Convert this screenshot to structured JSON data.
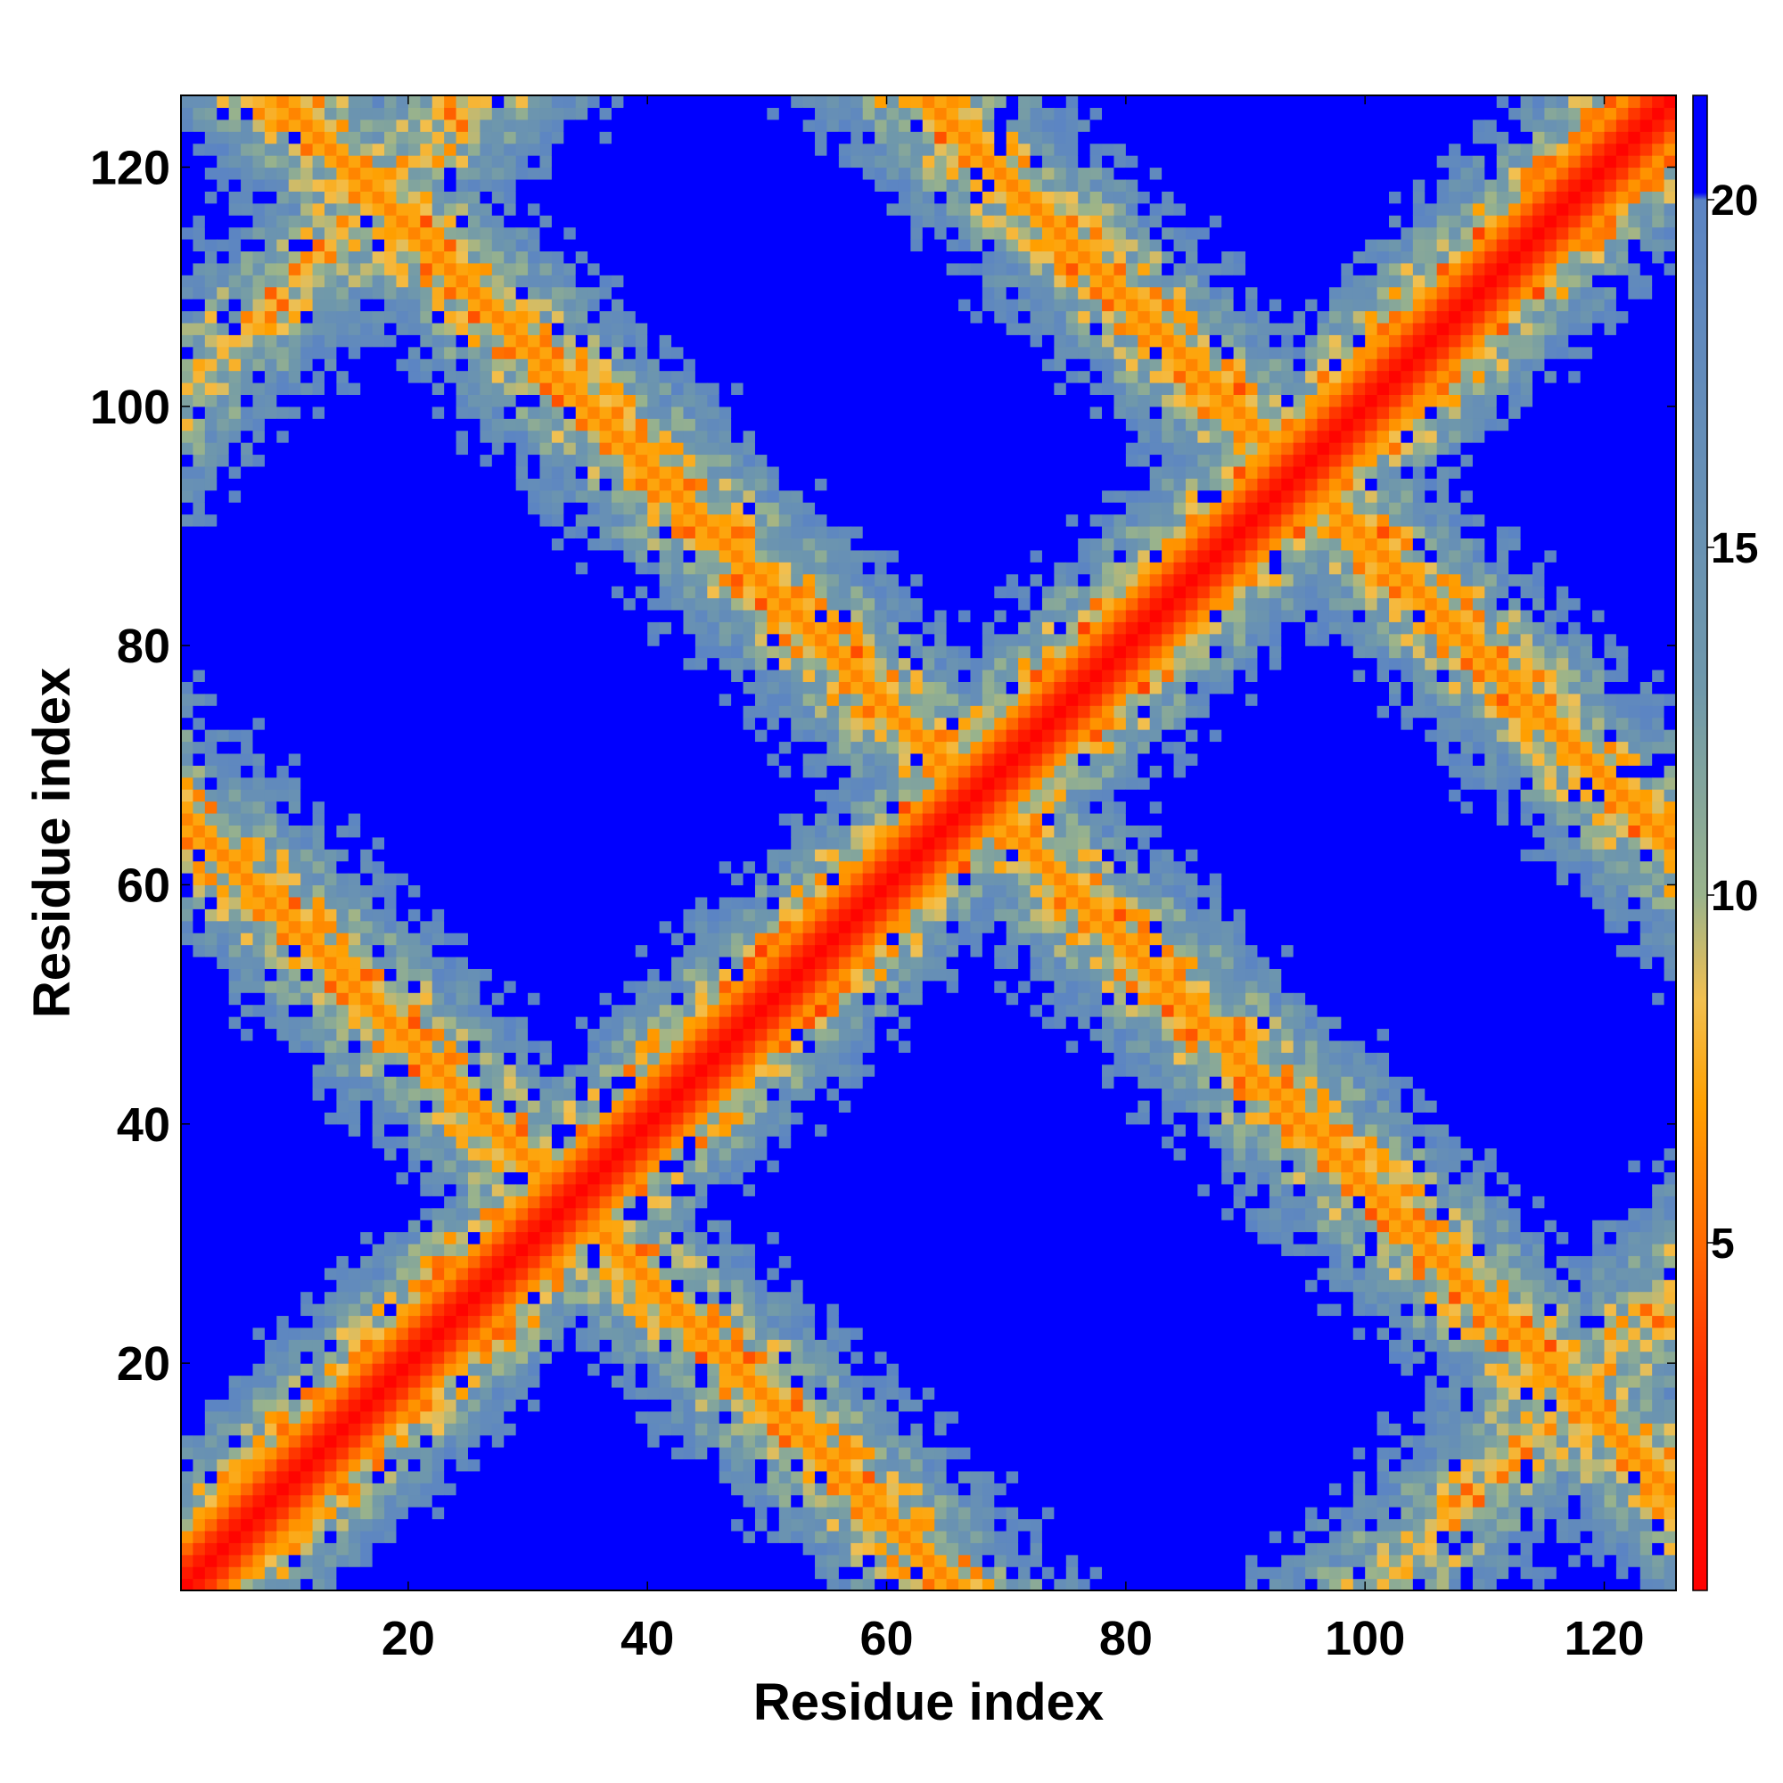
{
  "chart_data": {
    "type": "heatmap",
    "title": "",
    "xlabel": "Residue index",
    "ylabel": "Residue index",
    "n_residues": 125,
    "xlim": [
      1,
      126
    ],
    "ylim": [
      1,
      126
    ],
    "xticks": [
      20,
      40,
      60,
      80,
      100,
      120
    ],
    "yticks": [
      20,
      40,
      60,
      80,
      100,
      120
    ],
    "colorbar": {
      "range": [
        0,
        21.5
      ],
      "ticks": [
        5,
        10,
        15,
        20
      ],
      "saturation_color": "#0000ff",
      "color_stops": [
        {
          "value": 0,
          "color": "#ff0000"
        },
        {
          "value": 3,
          "color": "#ff2a00"
        },
        {
          "value": 5,
          "color": "#ff6a00"
        },
        {
          "value": 7,
          "color": "#ffa000"
        },
        {
          "value": 8.5,
          "color": "#f2c050"
        },
        {
          "value": 10,
          "color": "#99b38c"
        },
        {
          "value": 13,
          "color": "#6f98ab"
        },
        {
          "value": 20,
          "color": "#5b84c4"
        },
        {
          "value": 21.5,
          "color": "#0000ff"
        }
      ]
    },
    "cutoff": 20,
    "description_of_pattern": "Symmetric residue-residue distance map: near-zero distances along the main diagonal, two off-diagonal contact bands crossing near residue 65 (one anti-diagonal band from (5,60)-(60,5) region through (45,90)-(90,45) to (95,115)), and large distances (saturated blue) elsewhere.",
    "features": {
      "diagonal_width": 9,
      "antidiagonal_centers": [
        {
          "sum": 66,
          "halfwidth": 10
        },
        {
          "sum": 134,
          "halfwidth": 10
        },
        {
          "sum": 188,
          "halfwidth": 12
        }
      ],
      "parallel_bands": [
        {
          "offset": 100,
          "halfwidth": 12
        }
      ]
    }
  }
}
